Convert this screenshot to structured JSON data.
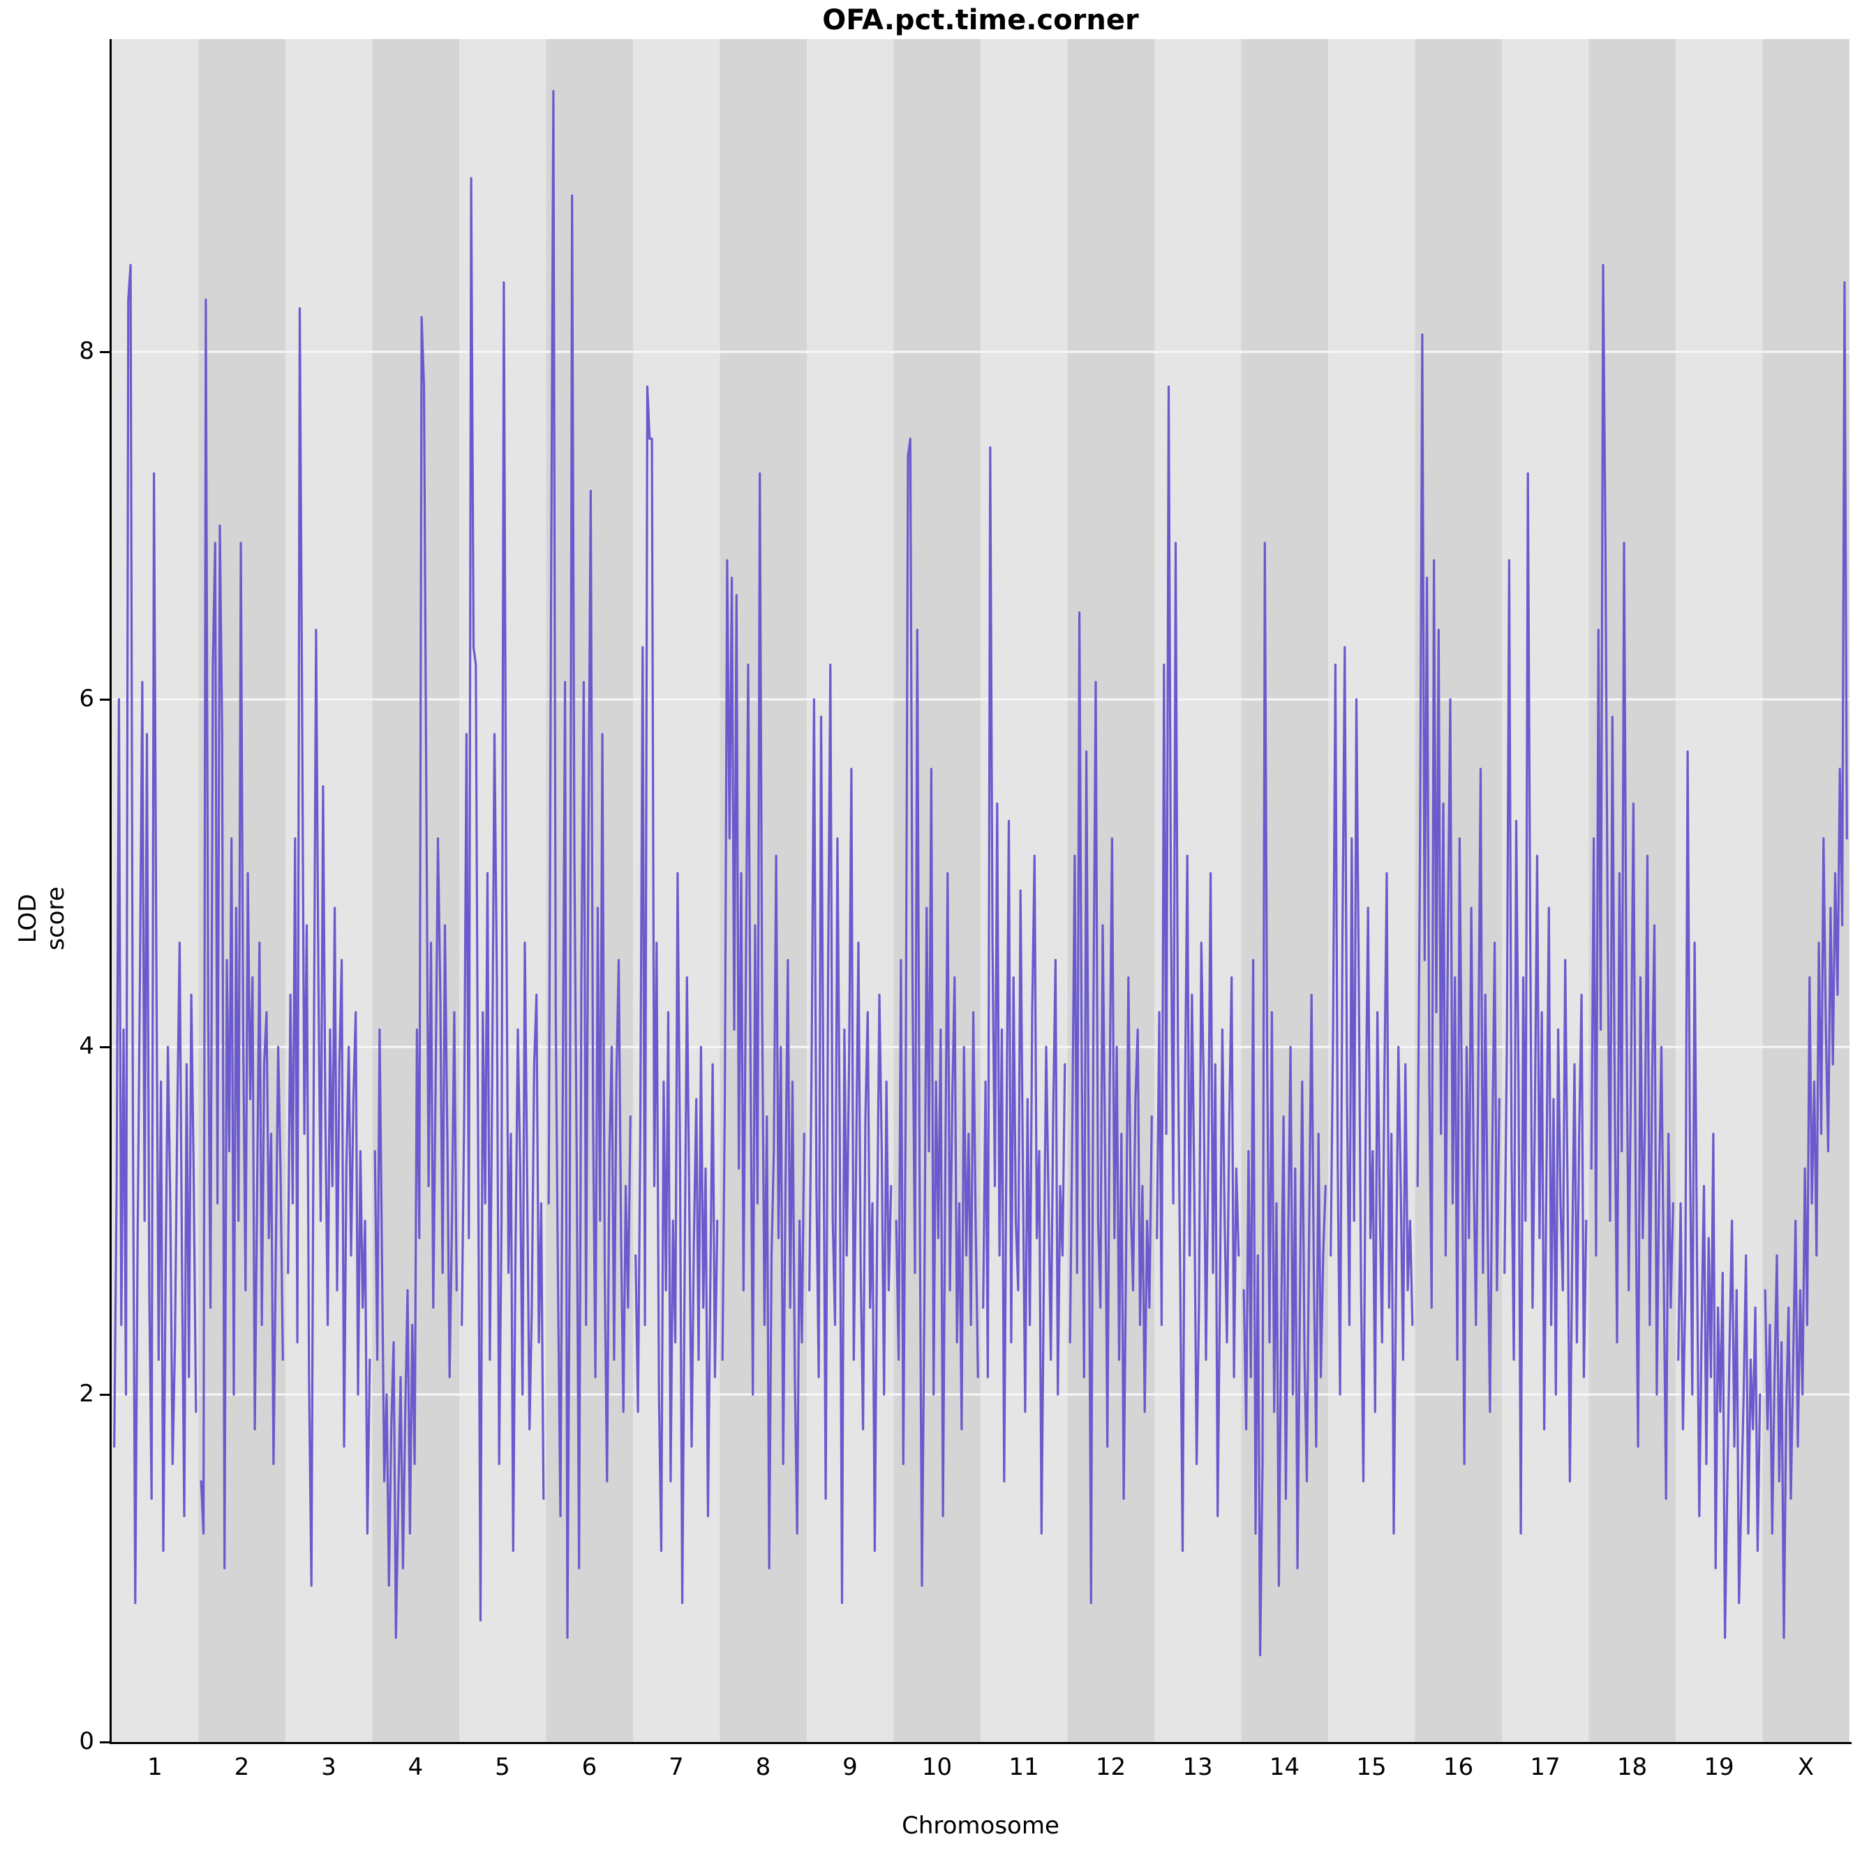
{
  "style": {
    "line_color": "#6a5acd",
    "band_light": "#e5e5e5",
    "band_dark": "#d5d5d5",
    "grid_color": "#f7f7f7",
    "axis_color": "#000000"
  },
  "chart_data": {
    "type": "line",
    "title": "OFA.pct.time.corner",
    "xlabel": "Chromosome",
    "ylabel": "LOD score",
    "ylim": [
      0,
      9.8
    ],
    "y_ticks": [
      0,
      2,
      4,
      6,
      8
    ],
    "categories": [
      "1",
      "2",
      "3",
      "4",
      "5",
      "6",
      "7",
      "8",
      "9",
      "10",
      "11",
      "12",
      "13",
      "14",
      "15",
      "16",
      "17",
      "18",
      "19",
      "X"
    ],
    "series": [
      {
        "name": "1",
        "values": [
          1.7,
          3.2,
          6.0,
          2.4,
          4.1,
          2.0,
          8.3,
          8.5,
          3.5,
          0.8,
          2.9,
          4.4,
          6.1,
          3.0,
          5.8,
          2.6,
          1.4,
          7.3,
          4.6,
          2.2,
          3.8,
          1.1,
          2.7,
          4.0,
          3.1,
          1.6,
          2.3,
          3.6,
          4.6,
          2.8,
          1.3,
          3.9,
          2.1,
          4.3,
          3.3,
          1.9
        ]
      },
      {
        "name": "2",
        "values": [
          1.5,
          1.2,
          8.3,
          4.2,
          2.5,
          6.2,
          6.9,
          3.1,
          7.0,
          5.8,
          1.0,
          4.5,
          3.4,
          5.2,
          2.0,
          4.8,
          3.0,
          6.9,
          4.1,
          2.6,
          5.0,
          3.7,
          4.4,
          1.8,
          3.2,
          4.6,
          2.4,
          3.9,
          4.2,
          2.9,
          3.5,
          1.6,
          2.8,
          4.0,
          3.3,
          2.2
        ]
      },
      {
        "name": "3",
        "values": [
          2.7,
          4.3,
          3.1,
          5.2,
          2.3,
          8.25,
          6.0,
          3.5,
          4.7,
          2.1,
          0.9,
          3.8,
          6.4,
          4.4,
          3.0,
          5.5,
          3.6,
          2.4,
          4.1,
          3.2,
          4.8,
          2.6,
          3.9,
          4.5,
          1.7,
          3.3,
          4.0,
          2.8,
          3.7,
          4.2,
          2.0,
          3.4,
          2.5,
          3.0,
          1.2,
          2.2
        ]
      },
      {
        "name": "4",
        "values": [
          3.4,
          2.2,
          4.1,
          2.8,
          1.5,
          2.0,
          0.9,
          1.8,
          2.3,
          0.6,
          1.4,
          2.1,
          1.0,
          1.9,
          2.6,
          1.2,
          2.4,
          1.6,
          4.1,
          2.9,
          8.2,
          7.8,
          5.5,
          3.2,
          4.6,
          2.5,
          3.8,
          5.2,
          4.3,
          2.7,
          4.7,
          3.5,
          2.1,
          3.0,
          4.2,
          2.6
        ]
      },
      {
        "name": "5",
        "values": [
          2.4,
          3.6,
          5.8,
          2.9,
          9.0,
          6.3,
          6.2,
          3.4,
          0.7,
          4.2,
          3.1,
          5.0,
          2.2,
          3.8,
          5.8,
          4.4,
          1.6,
          3.0,
          8.4,
          4.9,
          2.7,
          3.5,
          1.1,
          2.8,
          4.1,
          3.3,
          2.0,
          4.6,
          3.2,
          1.8,
          2.5,
          3.9,
          4.3,
          2.3,
          3.1,
          1.4
        ]
      },
      {
        "name": "6",
        "values": [
          3.1,
          6.6,
          9.5,
          4.2,
          2.6,
          1.3,
          3.7,
          6.1,
          0.6,
          2.9,
          8.9,
          5.1,
          3.3,
          1.0,
          4.4,
          6.1,
          2.4,
          5.2,
          7.2,
          3.6,
          2.1,
          4.8,
          3.0,
          5.8,
          2.7,
          1.5,
          3.4,
          4.0,
          2.2,
          3.8,
          4.5,
          2.9,
          1.9,
          3.2,
          2.5,
          3.6
        ]
      },
      {
        "name": "7",
        "values": [
          2.8,
          1.9,
          3.5,
          6.3,
          2.4,
          7.8,
          7.5,
          7.5,
          3.2,
          4.6,
          2.0,
          1.1,
          3.8,
          2.6,
          4.2,
          1.5,
          3.0,
          2.3,
          5.0,
          3.4,
          0.8,
          2.7,
          4.4,
          3.1,
          1.7,
          2.9,
          3.7,
          2.2,
          4.0,
          2.5,
          3.3,
          1.3,
          2.6,
          3.9,
          2.1,
          3.0
        ]
      },
      {
        "name": "8",
        "values": [
          2.2,
          3.7,
          6.8,
          5.2,
          6.7,
          4.1,
          6.6,
          3.3,
          5.0,
          2.6,
          4.4,
          6.2,
          3.9,
          2.0,
          4.7,
          3.1,
          7.3,
          4.2,
          2.4,
          3.6,
          1.0,
          2.8,
          3.4,
          5.1,
          2.9,
          4.0,
          1.6,
          3.2,
          4.5,
          2.5,
          3.8,
          2.1,
          1.2,
          3.0,
          2.3,
          3.5
        ]
      },
      {
        "name": "9",
        "values": [
          2.6,
          4.0,
          6.0,
          3.2,
          2.1,
          5.9,
          3.7,
          1.4,
          4.4,
          6.2,
          3.0,
          2.4,
          5.2,
          3.5,
          0.8,
          4.1,
          2.8,
          3.9,
          5.6,
          2.2,
          3.3,
          4.6,
          2.7,
          1.8,
          3.6,
          4.2,
          2.5,
          3.1,
          1.1,
          2.9,
          4.3,
          3.4,
          2.0,
          3.8,
          2.6,
          3.2
        ]
      },
      {
        "name": "10",
        "values": [
          3.0,
          2.2,
          4.5,
          1.6,
          3.6,
          7.4,
          7.5,
          4.3,
          2.7,
          6.4,
          3.2,
          0.9,
          2.5,
          4.8,
          3.4,
          5.6,
          2.0,
          3.8,
          2.9,
          4.1,
          1.3,
          3.3,
          5.0,
          2.6,
          3.7,
          4.4,
          2.3,
          3.1,
          1.8,
          4.0,
          2.8,
          3.5,
          2.4,
          4.2,
          3.0,
          2.1
        ]
      },
      {
        "name": "11",
        "values": [
          2.5,
          3.8,
          2.1,
          7.45,
          4.6,
          3.2,
          5.4,
          2.8,
          4.1,
          1.5,
          3.5,
          5.3,
          2.3,
          4.4,
          3.0,
          2.6,
          4.9,
          3.3,
          1.9,
          3.7,
          2.4,
          4.2,
          5.1,
          2.9,
          3.4,
          1.2,
          2.7,
          4.0,
          3.1,
          2.2,
          3.6,
          4.5,
          2.0,
          3.2,
          2.8,
          3.9
        ]
      },
      {
        "name": "12",
        "values": [
          2.3,
          3.6,
          5.1,
          2.7,
          6.5,
          3.9,
          2.1,
          5.7,
          3.3,
          0.8,
          4.2,
          6.1,
          3.0,
          2.5,
          4.7,
          3.4,
          1.7,
          3.8,
          5.2,
          2.9,
          4.0,
          2.2,
          3.5,
          1.4,
          2.8,
          4.4,
          3.1,
          2.6,
          3.7,
          4.1,
          2.4,
          3.2,
          1.9,
          3.0,
          2.5,
          3.6
        ]
      },
      {
        "name": "13",
        "values": [
          2.9,
          4.2,
          2.4,
          6.2,
          3.5,
          7.8,
          4.8,
          3.1,
          6.9,
          4.0,
          2.6,
          1.1,
          3.7,
          5.1,
          2.8,
          4.3,
          3.2,
          1.6,
          2.5,
          4.6,
          3.8,
          2.2,
          3.4,
          5.0,
          2.7,
          3.9,
          1.3,
          2.6,
          4.1,
          3.0,
          2.3,
          3.6,
          4.4,
          2.1,
          3.3,
          2.8
        ]
      },
      {
        "name": "14",
        "values": [
          2.6,
          1.8,
          3.4,
          2.1,
          4.5,
          1.2,
          2.8,
          0.5,
          1.6,
          6.9,
          3.9,
          2.3,
          4.2,
          1.9,
          3.1,
          0.9,
          2.4,
          3.6,
          1.4,
          2.9,
          4.0,
          2.0,
          3.3,
          1.0,
          2.5,
          3.8,
          2.2,
          1.5,
          3.0,
          4.3,
          2.7,
          1.7,
          3.5,
          2.1,
          2.8,
          3.2
        ]
      },
      {
        "name": "15",
        "values": [
          2.8,
          4.1,
          6.2,
          3.3,
          2.0,
          4.6,
          6.3,
          3.7,
          2.4,
          5.2,
          3.0,
          6.0,
          4.4,
          2.6,
          1.5,
          3.6,
          4.8,
          2.9,
          3.4,
          1.9,
          4.2,
          3.1,
          2.3,
          3.8,
          5.0,
          2.5,
          3.5,
          1.2,
          2.7,
          4.0,
          3.2,
          2.2,
          3.9,
          2.6,
          3.0,
          2.4
        ]
      },
      {
        "name": "16",
        "values": [
          3.2,
          5.1,
          8.1,
          4.5,
          6.7,
          3.8,
          2.5,
          6.8,
          4.2,
          6.4,
          3.5,
          5.4,
          2.8,
          4.7,
          6.0,
          3.1,
          4.4,
          2.2,
          5.2,
          3.6,
          1.6,
          4.0,
          2.9,
          4.8,
          3.3,
          2.4,
          3.9,
          5.6,
          2.7,
          4.3,
          3.0,
          1.9,
          3.4,
          4.6,
          2.6,
          3.7
        ]
      },
      {
        "name": "17",
        "values": [
          2.7,
          4.0,
          6.8,
          3.4,
          2.2,
          5.3,
          3.8,
          1.2,
          4.4,
          3.0,
          7.3,
          4.7,
          2.5,
          3.6,
          5.1,
          2.9,
          4.2,
          1.8,
          3.3,
          4.8,
          2.4,
          3.7,
          2.0,
          4.1,
          3.1,
          2.6,
          4.5,
          3.2,
          1.5,
          2.8,
          3.9,
          2.3,
          3.5,
          4.3,
          2.1,
          3.0
        ]
      },
      {
        "name": "18",
        "values": [
          3.3,
          5.2,
          2.8,
          6.4,
          4.1,
          8.5,
          6.9,
          4.6,
          3.0,
          5.9,
          3.7,
          2.3,
          5.0,
          3.4,
          6.9,
          4.3,
          2.6,
          3.9,
          5.4,
          3.1,
          1.7,
          4.4,
          2.9,
          3.6,
          5.1,
          2.4,
          3.8,
          4.7,
          2.0,
          3.2,
          4.0,
          2.7,
          1.4,
          3.5,
          2.5,
          3.1
        ]
      },
      {
        "name": "19",
        "values": [
          2.2,
          3.1,
          1.8,
          2.6,
          5.7,
          3.4,
          2.0,
          4.6,
          2.8,
          1.3,
          2.4,
          3.2,
          1.6,
          2.9,
          2.1,
          3.5,
          1.0,
          2.5,
          1.9,
          2.7,
          0.6,
          1.5,
          2.3,
          3.0,
          1.7,
          2.6,
          0.8,
          1.4,
          2.0,
          2.8,
          1.2,
          2.2,
          1.8,
          2.5,
          1.1,
          2.0
        ]
      },
      {
        "name": "X",
        "values": [
          2.6,
          1.8,
          2.4,
          1.2,
          2.1,
          2.8,
          1.5,
          2.3,
          0.6,
          1.9,
          2.5,
          1.4,
          2.2,
          3.0,
          1.7,
          2.6,
          2.0,
          3.3,
          2.4,
          4.4,
          3.1,
          3.8,
          2.8,
          4.6,
          3.5,
          5.2,
          4.1,
          3.4,
          4.8,
          3.9,
          5.0,
          4.3,
          5.6,
          4.7,
          8.4,
          5.2
        ]
      }
    ]
  }
}
